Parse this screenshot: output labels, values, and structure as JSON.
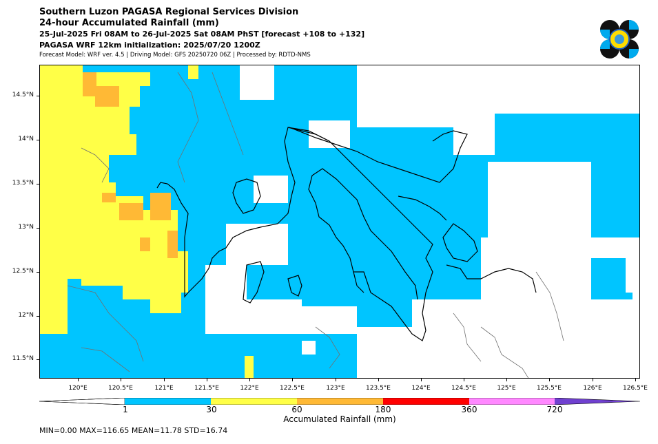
{
  "title": {
    "line1": "Southern Luzon PAGASA Regional Services Division",
    "line2": "24-hour Accumulated Rainfall (mm)",
    "line3": "25-Jul-2025 Fri 08AM to 26-Jul-2025 Sat 08AM PhST [forecast +108 to +132]",
    "line4": "PAGASA WRF 12km initialization: 2025/07/20 1200Z",
    "line5": "Forecast Model: WRF ver. 4.5 | Driving Model: GFS 20250720 06Z | Processed by: RDTD-NMS"
  },
  "logo": {
    "icon": "pagasa-logo-icon"
  },
  "map": {
    "lon_range": [
      119.55,
      126.55
    ],
    "lat_range": [
      11.3,
      14.85
    ],
    "lat_ticks": [
      "11.5°N",
      "12°N",
      "12.5°N",
      "13°N",
      "13.5°N",
      "14°N",
      "14.5°N"
    ],
    "lon_ticks": [
      "120°E",
      "120.5°E",
      "121°E",
      "121.5°E",
      "122°E",
      "122.5°E",
      "123°E",
      "123.5°E",
      "124°E",
      "124.5°E",
      "125°E",
      "125.5°E",
      "126°E",
      "126.5°E"
    ],
    "colors": {
      "1-30": "#00c5ff",
      "30-60": "#ffff47",
      "60-180": "#ffb935",
      "no-rain": "#ffffff",
      "coast": "#000000",
      "minor_coast": "#707070"
    }
  },
  "colorbar": {
    "labels": [
      "1",
      "30",
      "60",
      "180",
      "360",
      "720"
    ],
    "colors": [
      "#00c5ff",
      "#ffff47",
      "#ffb935",
      "#ff0000",
      "#ff88ff",
      "#7040d0"
    ],
    "title": "Accumulated Rainfall (mm)"
  },
  "stats": "MIN=0.00   MAX=116.65   MEAN=11.78   STD=16.74"
}
